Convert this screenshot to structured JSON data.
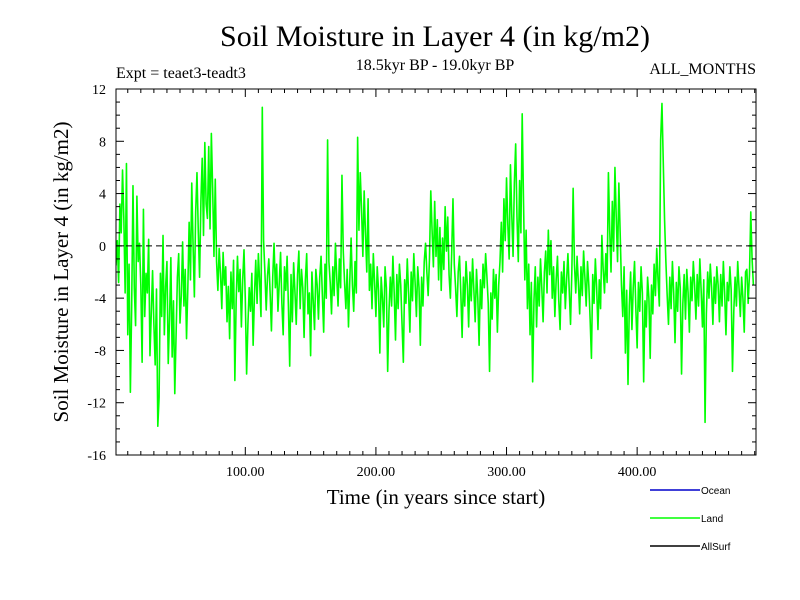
{
  "chart_data": {
    "type": "line",
    "title": "Soil Moisture in Layer 4 (in kg/m2)",
    "subtitle_left": "Expt = teaet3-teadt3",
    "subtitle_center": "18.5kyr BP - 19.0kyr BP",
    "subtitle_right": "ALL_MONTHS",
    "xlabel": "Time (in years since start)",
    "ylabel": "Soil Moisture in Layer 4 (in kg/m2)",
    "xlim": [
      1,
      491
    ],
    "ylim": [
      -16,
      12
    ],
    "x_ticks": [
      100,
      200,
      300,
      400
    ],
    "x_tick_labels": [
      "100.00",
      "200.00",
      "300.00",
      "400.00"
    ],
    "y_ticks": [
      12,
      8,
      4,
      0,
      -4,
      -8,
      -12,
      -16
    ],
    "y_tick_labels": [
      "12",
      "8",
      "4",
      "0",
      "-4",
      "-8",
      "-12",
      "-16"
    ],
    "zero_line": 0,
    "legend": [
      {
        "name": "Ocean",
        "color": "#0000cc"
      },
      {
        "name": "Land",
        "color": "#00ff00"
      },
      {
        "name": "AllSurf",
        "color": "#000000"
      }
    ],
    "series": [
      {
        "name": "Land",
        "color": "#00ff00",
        "x_start": 1,
        "x_step": 1,
        "values": [
          -1.5,
          0.4,
          -2.8,
          3.2,
          1.0,
          5.8,
          2.1,
          -3.6,
          6.3,
          -6.8,
          -1.4,
          -11.2,
          -4.7,
          4.6,
          -3.2,
          -6.1,
          3.8,
          -1.2,
          0.2,
          -3.0,
          -8.9,
          2.8,
          -5.4,
          -2.1,
          -3.6,
          0.5,
          -8.4,
          -5.2,
          -1.9,
          -6.0,
          -9.1,
          -3.3,
          -13.8,
          -11.6,
          -2.1,
          -5.4,
          0.8,
          -6.8,
          -3.1,
          -1.2,
          -9.0,
          -5.6,
          -0.9,
          -8.5,
          -4.2,
          -11.3,
          -6.8,
          -2.4,
          -0.6,
          -5.9,
          -3.8,
          0.3,
          -4.6,
          -1.8,
          -7.1,
          -3.2,
          1.8,
          -2.6,
          4.8,
          0.1,
          -3.9,
          2.6,
          5.6,
          1.1,
          -2.4,
          3.4,
          6.7,
          0.8,
          7.9,
          3.2,
          2.1,
          7.6,
          1.3,
          8.6,
          4.4,
          -0.8,
          5.1,
          -1.2,
          -3.4,
          -0.2,
          -2.1,
          -4.8,
          -0.5,
          -3.0,
          -1.6,
          -5.8,
          -3.1,
          -7.1,
          -2.0,
          -4.8,
          -1.1,
          -10.3,
          -4.2,
          -0.8,
          -3.5,
          -1.8,
          -6.2,
          -2.6,
          -0.3,
          -4.1,
          -9.8,
          -6.0,
          -3.2,
          -5.0,
          -2.1,
          -7.6,
          -3.8,
          -1.1,
          -4.4,
          -0.6,
          -2.8,
          -5.4,
          10.6,
          0.4,
          -2.0,
          -4.9,
          -2.3,
          -1.0,
          -3.6,
          -6.5,
          -2.4,
          0.2,
          -3.2,
          -1.4,
          -5.0,
          -2.8,
          -0.5,
          -4.4,
          -6.8,
          -1.6,
          -3.4,
          -0.8,
          -4.6,
          -9.2,
          -2.2,
          -5.8,
          -1.3,
          -3.5,
          -6.0,
          -2.2,
          -0.4,
          -4.8,
          -1.8,
          -3.2,
          -7.0,
          -2.6,
          -0.6,
          -5.2,
          -3.6,
          -8.4,
          -2.0,
          -4.2,
          -6.4,
          -1.8,
          -3.0,
          -5.6,
          -2.4,
          -0.8,
          -3.8,
          -6.6,
          -1.4,
          -4.0,
          8.1,
          -1.2,
          -2.8,
          -5.2,
          -1.6,
          -3.8,
          0.2,
          -2.4,
          -4.6,
          -1.0,
          -3.2,
          5.4,
          -0.4,
          -2.8,
          -4.8,
          -1.8,
          -6.2,
          -2.6,
          0.6,
          -3.0,
          -5.0,
          -1.2,
          -3.6,
          8.3,
          1.2,
          5.6,
          2.8,
          -0.8,
          4.2,
          1.0,
          -2.0,
          3.6,
          -3.4,
          -1.4,
          -4.8,
          -0.6,
          -2.8,
          -5.4,
          -1.6,
          -3.4,
          -8.2,
          -2.4,
          -4.0,
          -6.2,
          -1.6,
          -3.2,
          -9.6,
          -5.0,
          -2.4,
          -4.6,
          -0.8,
          -3.6,
          -7.2,
          -2.2,
          -4.8,
          -1.4,
          -3.0,
          -6.0,
          -8.9,
          -2.6,
          -4.4,
          -1.0,
          -3.6,
          -6.6,
          -2.0,
          -4.2,
          -0.6,
          -2.8,
          -5.4,
          -1.6,
          -3.2,
          -7.6,
          -2.4,
          -4.6,
          -1.2,
          0.2,
          -2.0,
          -3.8,
          -1.0,
          4.2,
          1.2,
          -1.6,
          3.4,
          -0.8,
          2.0,
          -2.6,
          1.4,
          -3.4,
          0.6,
          -1.8,
          3.0,
          -0.4,
          2.2,
          -2.2,
          -4.0,
          -0.6,
          3.6,
          -1.4,
          -3.2,
          -5.4,
          -2.0,
          -0.8,
          -3.6,
          -7.0,
          -2.4,
          -4.6,
          -1.2,
          -3.0,
          -6.2,
          -2.0,
          -4.2,
          -1.0,
          -3.4,
          -5.8,
          -1.8,
          -4.0,
          -7.6,
          -2.6,
          -4.8,
          -1.4,
          -3.2,
          -0.6,
          -2.4,
          -4.4,
          -9.6,
          -3.6,
          -5.6,
          -1.8,
          -4.0,
          -2.2,
          -6.6,
          -3.0,
          -1.2,
          1.8,
          -2.0,
          3.6,
          0.4,
          5.2,
          1.6,
          -1.0,
          6.2,
          2.4,
          -0.8,
          4.8,
          7.8,
          2.2,
          -1.2,
          5.0,
          1.0,
          10.1,
          3.4,
          -2.6,
          1.2,
          -4.8,
          -1.4,
          -6.8,
          -2.8,
          -10.4,
          -4.2,
          -1.6,
          -6.2,
          -2.4,
          -4.6,
          -1.0,
          -3.2,
          -5.8,
          -2.0,
          -0.4,
          -3.6,
          1.2,
          -2.2,
          0.4,
          -4.0,
          -1.6,
          -5.4,
          -2.6,
          -0.8,
          -4.2,
          -6.4,
          -2.0,
          -3.6,
          -1.2,
          -4.8,
          -2.6,
          -0.6,
          -3.4,
          -6.0,
          -2.0,
          4.4,
          -1.4,
          -3.6,
          -0.8,
          -2.8,
          -5.2,
          -1.6,
          -3.8,
          -0.4,
          -2.4,
          -4.6,
          -1.2,
          -3.0,
          -5.6,
          -8.6,
          -2.2,
          -4.4,
          -1.0,
          -3.2,
          -6.4,
          -2.6,
          -4.8,
          0.8,
          -1.8,
          -3.6,
          -0.6,
          -2.8,
          5.6,
          1.2,
          -2.0,
          3.4,
          -0.4,
          6.0,
          2.2,
          -1.2,
          4.8,
          1.0,
          -3.0,
          -5.4,
          -1.6,
          -8.2,
          -3.4,
          -10.6,
          -4.6,
          -2.0,
          -6.4,
          -3.2,
          -1.2,
          -4.8,
          -7.8,
          -2.8,
          -5.0,
          -1.6,
          -3.6,
          -10.4,
          -4.2,
          -6.2,
          -2.4,
          -4.0,
          -8.6,
          -3.0,
          -5.2,
          -1.4,
          -3.8,
          -0.2,
          -2.6,
          -4.6,
          8.1,
          10.9,
          6.4,
          2.0,
          -1.2,
          -3.8,
          -6.0,
          -2.4,
          -4.8,
          -1.2,
          -3.6,
          -7.4,
          -2.8,
          -5.0,
          -1.6,
          -3.2,
          -9.8,
          -4.4,
          -2.2,
          -5.6,
          -1.8,
          -3.6,
          -6.6,
          -2.4,
          -4.2,
          -1.2,
          -3.0,
          -5.6,
          -2.2,
          -4.6,
          -1.0,
          -3.4,
          -6.2,
          -2.6,
          -13.5,
          -5.2,
          -2.0,
          -4.0,
          -1.4,
          -3.2,
          -6.0,
          -2.4,
          -4.4,
          -1.6,
          -3.0,
          -5.8,
          -2.2,
          -4.6,
          -1.2,
          -3.6,
          -6.8,
          -2.8,
          -4.2,
          -1.6,
          -3.4,
          -9.6,
          -5.0,
          -2.4,
          -4.6,
          -1.2,
          -3.2,
          -5.4,
          -2.4,
          -4.0,
          -6.6,
          -2.0,
          -1.8,
          -4.4,
          -2.2,
          2.6,
          -1.0,
          -3.0
        ]
      }
    ]
  }
}
